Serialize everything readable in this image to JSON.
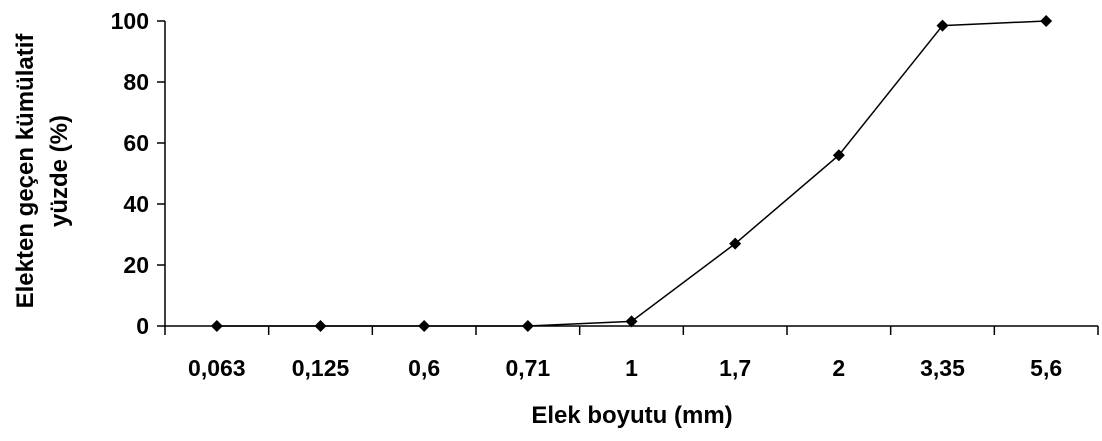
{
  "chart_data": {
    "type": "line",
    "categories": [
      "0,063",
      "0,125",
      "0,6",
      "0,71",
      "1",
      "1,7",
      "2",
      "3,35",
      "5,6"
    ],
    "series": [
      {
        "values": [
          0,
          0,
          0,
          0,
          1.5,
          27,
          56,
          98.5,
          100
        ],
        "marker": "diamond",
        "color": "#000000"
      }
    ],
    "xlabel": "Elek boyutu (mm)",
    "ylabel_lines": [
      "Elekten geçen kümülatif",
      "yüzde (%)"
    ],
    "ylim": [
      0,
      100
    ],
    "yticks": [
      0,
      20,
      40,
      60,
      80,
      100
    ],
    "grid": false,
    "legend": "none"
  }
}
